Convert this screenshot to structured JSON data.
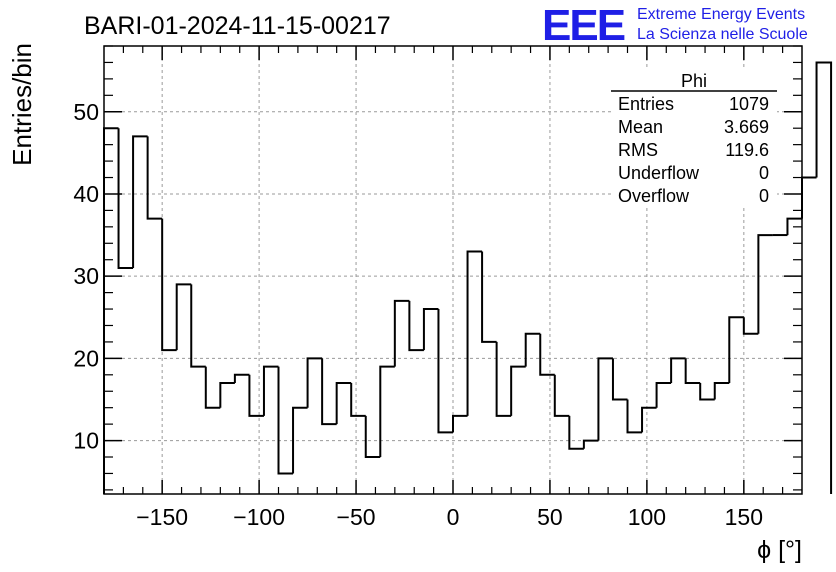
{
  "chart_data": {
    "type": "bar",
    "style": "step-histogram",
    "title": "BARI-01-2024-11-15-00217",
    "xlabel": "ϕ [°]",
    "ylabel": "Entries/bin",
    "xlim": [
      -180,
      180
    ],
    "ylim": [
      3.5,
      58
    ],
    "xticks": [
      -150,
      -100,
      -50,
      0,
      50,
      100,
      150
    ],
    "xtick_labels": [
      "−150",
      "−100",
      "−50",
      "0",
      "50",
      "100",
      "150"
    ],
    "yticks": [
      10,
      20,
      30,
      40,
      50
    ],
    "ytick_labels": [
      "10",
      "20",
      "30",
      "40",
      "50"
    ],
    "grid": true,
    "bin_width": 7.5,
    "bin_edges_start": -180,
    "values": [
      48,
      31,
      47,
      37,
      21,
      29,
      19,
      14,
      17,
      18,
      13,
      19,
      6,
      14,
      20,
      12,
      17,
      13,
      8,
      19,
      27,
      21,
      26,
      11,
      13,
      33,
      22,
      13,
      19,
      23,
      18,
      13,
      9,
      10,
      20,
      15,
      11,
      14,
      17,
      20,
      17,
      15,
      17,
      25,
      23,
      35,
      35,
      37,
      42,
      56
    ]
  },
  "stats_box": {
    "title": "Phi",
    "rows": [
      {
        "label": "Entries",
        "value": "1079"
      },
      {
        "label": "Mean",
        "value": "3.669"
      },
      {
        "label": "RMS",
        "value": "119.6"
      },
      {
        "label": "Underflow",
        "value": "0"
      },
      {
        "label": "Overflow",
        "value": "0"
      }
    ]
  },
  "logo": {
    "mark": "EEE",
    "line1": "Extreme Energy Events",
    "line2": "La Scienza nelle Scuole",
    "color": "#1f1fe6"
  }
}
